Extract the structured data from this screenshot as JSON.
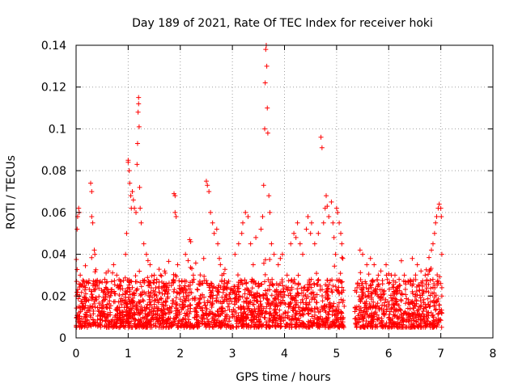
{
  "chart_data": {
    "type": "scatter",
    "title": "Day 189 of 2021, Rate Of TEC Index for receiver hoki",
    "xlabel": "GPS time / hours",
    "ylabel": "ROTI / TECUs",
    "xlim": [
      0,
      8
    ],
    "ylim": [
      0,
      0.14
    ],
    "xticks": [
      0,
      1,
      2,
      3,
      4,
      5,
      6,
      7,
      8
    ],
    "xtick_labels": [
      "0",
      "1",
      "2",
      "3",
      "4",
      "5",
      "6",
      "7",
      "8"
    ],
    "yticks": [
      0,
      0.02,
      0.04,
      0.06,
      0.08,
      0.1,
      0.12,
      0.14
    ],
    "ytick_labels": [
      "0",
      "0.02",
      "0.04",
      "0.06",
      "0.08",
      "0.1",
      "0.12",
      "0.14"
    ],
    "grid": true,
    "marker": "+",
    "color": "#ff0000",
    "data_gap": [
      5.15,
      5.35
    ],
    "series": [
      {
        "name": "ROTI",
        "points": [
          [
            0.02,
            0.052
          ],
          [
            0.03,
            0.058
          ],
          [
            0.05,
            0.062
          ],
          [
            0.06,
            0.06
          ],
          [
            0.08,
            0.03
          ],
          [
            0.1,
            0.025
          ],
          [
            0.28,
            0.074
          ],
          [
            0.3,
            0.07
          ],
          [
            0.3,
            0.058
          ],
          [
            0.32,
            0.055
          ],
          [
            0.35,
            0.042
          ],
          [
            0.36,
            0.04
          ],
          [
            0.55,
            0.028
          ],
          [
            0.62,
            0.032
          ],
          [
            0.72,
            0.035
          ],
          [
            0.78,
            0.03
          ],
          [
            0.8,
            0.025
          ],
          [
            0.95,
            0.04
          ],
          [
            0.97,
            0.05
          ],
          [
            1.0,
            0.084
          ],
          [
            1.0,
            0.085
          ],
          [
            1.02,
            0.08
          ],
          [
            1.03,
            0.074
          ],
          [
            1.05,
            0.068
          ],
          [
            1.06,
            0.062
          ],
          [
            1.08,
            0.07
          ],
          [
            1.1,
            0.066
          ],
          [
            1.12,
            0.062
          ],
          [
            1.15,
            0.06
          ],
          [
            1.17,
            0.083
          ],
          [
            1.18,
            0.093
          ],
          [
            1.19,
            0.108
          ],
          [
            1.2,
            0.115
          ],
          [
            1.2,
            0.112
          ],
          [
            1.21,
            0.101
          ],
          [
            1.22,
            0.072
          ],
          [
            1.23,
            0.062
          ],
          [
            1.25,
            0.055
          ],
          [
            1.3,
            0.045
          ],
          [
            1.35,
            0.04
          ],
          [
            1.38,
            0.037
          ],
          [
            1.42,
            0.035
          ],
          [
            1.5,
            0.03
          ],
          [
            1.55,
            0.028
          ],
          [
            1.62,
            0.03
          ],
          [
            1.7,
            0.032
          ],
          [
            1.88,
            0.069
          ],
          [
            1.9,
            0.068
          ],
          [
            1.9,
            0.06
          ],
          [
            1.92,
            0.058
          ],
          [
            1.95,
            0.035
          ],
          [
            2.1,
            0.04
          ],
          [
            2.15,
            0.037
          ],
          [
            2.18,
            0.047
          ],
          [
            2.2,
            0.046
          ],
          [
            2.25,
            0.03
          ],
          [
            2.5,
            0.075
          ],
          [
            2.52,
            0.073
          ],
          [
            2.55,
            0.07
          ],
          [
            2.58,
            0.06
          ],
          [
            2.62,
            0.055
          ],
          [
            2.65,
            0.05
          ],
          [
            2.7,
            0.052
          ],
          [
            2.72,
            0.045
          ],
          [
            2.75,
            0.038
          ],
          [
            2.8,
            0.03
          ],
          [
            3.05,
            0.04
          ],
          [
            3.12,
            0.045
          ],
          [
            3.18,
            0.05
          ],
          [
            3.2,
            0.055
          ],
          [
            3.25,
            0.06
          ],
          [
            3.3,
            0.058
          ],
          [
            3.35,
            0.045
          ],
          [
            3.4,
            0.035
          ],
          [
            3.45,
            0.048
          ],
          [
            3.55,
            0.052
          ],
          [
            3.58,
            0.058
          ],
          [
            3.6,
            0.073
          ],
          [
            3.62,
            0.1
          ],
          [
            3.63,
            0.122
          ],
          [
            3.64,
            0.138
          ],
          [
            3.65,
            0.14
          ],
          [
            3.66,
            0.13
          ],
          [
            3.67,
            0.11
          ],
          [
            3.68,
            0.098
          ],
          [
            3.7,
            0.068
          ],
          [
            3.72,
            0.06
          ],
          [
            3.75,
            0.045
          ],
          [
            3.8,
            0.04
          ],
          [
            3.88,
            0.035
          ],
          [
            3.92,
            0.038
          ],
          [
            3.96,
            0.04
          ],
          [
            4.05,
            0.03
          ],
          [
            4.12,
            0.045
          ],
          [
            4.18,
            0.05
          ],
          [
            4.22,
            0.048
          ],
          [
            4.25,
            0.055
          ],
          [
            4.3,
            0.045
          ],
          [
            4.35,
            0.04
          ],
          [
            4.42,
            0.052
          ],
          [
            4.45,
            0.058
          ],
          [
            4.5,
            0.05
          ],
          [
            4.52,
            0.055
          ],
          [
            4.58,
            0.045
          ],
          [
            4.65,
            0.05
          ],
          [
            4.7,
            0.096
          ],
          [
            4.72,
            0.091
          ],
          [
            4.75,
            0.055
          ],
          [
            4.78,
            0.062
          ],
          [
            4.8,
            0.068
          ],
          [
            4.82,
            0.063
          ],
          [
            4.85,
            0.058
          ],
          [
            4.9,
            0.065
          ],
          [
            4.93,
            0.055
          ],
          [
            4.95,
            0.048
          ],
          [
            4.98,
            0.04
          ],
          [
            5.0,
            0.062
          ],
          [
            5.02,
            0.06
          ],
          [
            5.05,
            0.055
          ],
          [
            5.08,
            0.05
          ],
          [
            5.1,
            0.045
          ],
          [
            5.12,
            0.038
          ],
          [
            5.45,
            0.042
          ],
          [
            5.5,
            0.04
          ],
          [
            5.58,
            0.035
          ],
          [
            5.65,
            0.038
          ],
          [
            5.72,
            0.035
          ],
          [
            5.8,
            0.03
          ],
          [
            5.85,
            0.032
          ],
          [
            5.95,
            0.035
          ],
          [
            6.05,
            0.03
          ],
          [
            6.12,
            0.03
          ],
          [
            6.2,
            0.028
          ],
          [
            6.3,
            0.03
          ],
          [
            6.45,
            0.025
          ],
          [
            6.55,
            0.035
          ],
          [
            6.62,
            0.032
          ],
          [
            6.7,
            0.03
          ],
          [
            6.78,
            0.032
          ],
          [
            6.82,
            0.042
          ],
          [
            6.85,
            0.045
          ],
          [
            6.88,
            0.05
          ],
          [
            6.9,
            0.055
          ],
          [
            6.92,
            0.058
          ],
          [
            6.95,
            0.062
          ],
          [
            6.97,
            0.064
          ],
          [
            7.0,
            0.062
          ],
          [
            7.01,
            0.058
          ],
          [
            7.02,
            0.04
          ],
          [
            7.02,
            0.02
          ]
        ]
      }
    ]
  }
}
